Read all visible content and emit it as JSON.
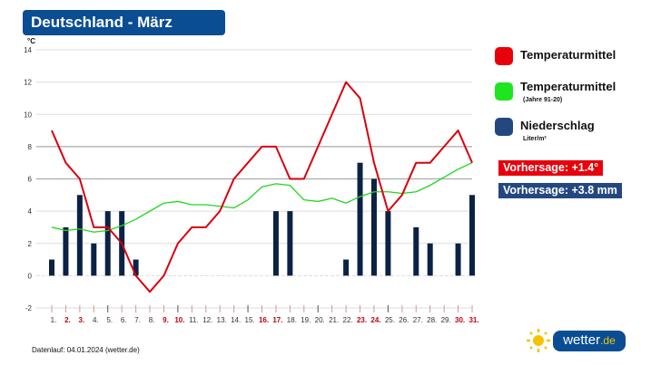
{
  "header": {
    "title": "Deutschland - März",
    "unit": "°C"
  },
  "legend": [
    {
      "label": "Temperaturmittel",
      "sub": "",
      "color": "#e8000b"
    },
    {
      "label": "Temperaturmittel",
      "sub": "(Jahre 91-20)",
      "color": "#1ee61e"
    },
    {
      "label": "Niederschlag",
      "sub": "Liter/m²",
      "color": "#23487f"
    }
  ],
  "forecast": {
    "temp": "Vorhersage: +1.4°",
    "precip": "Vorhersage: +3.8 mm",
    "temp_color": "#e8000b",
    "precip_color": "#23487f"
  },
  "footer": {
    "source": "Datenlauf: 04.01.2024 (wetter.de)",
    "logo_main": "wetter",
    "logo_tld": ".de"
  },
  "chart_data": {
    "type": "bar+line",
    "title": "Deutschland - März",
    "ylabel": "°C",
    "ylim": [
      -2,
      14
    ],
    "yticks": [
      -2,
      0,
      2,
      4,
      6,
      8,
      10,
      12,
      14
    ],
    "categories": [
      "1.",
      "2.",
      "3.",
      "4.",
      "5.",
      "6.",
      "7.",
      "8.",
      "9.",
      "10.",
      "11.",
      "12.",
      "13.",
      "14.",
      "15.",
      "16.",
      "17.",
      "18.",
      "19.",
      "20.",
      "21.",
      "22.",
      "23.",
      "24.",
      "25.",
      "26.",
      "27.",
      "28.",
      "29.",
      "30.",
      "31."
    ],
    "weekend_days": [
      2,
      3,
      9,
      10,
      16,
      17,
      23,
      24,
      30,
      31
    ],
    "series": [
      {
        "name": "Temperaturmittel",
        "type": "line",
        "color": "#d9000d",
        "values": [
          9,
          7,
          6,
          3,
          3,
          2,
          0,
          -1,
          0,
          2,
          3,
          3,
          4,
          6,
          7,
          8,
          8,
          6,
          6,
          8,
          10,
          12,
          11,
          7,
          4,
          5,
          7,
          7,
          8,
          9,
          7
        ]
      },
      {
        "name": "Temperaturmittel (Jahre 91-20)",
        "type": "line",
        "color": "#22d622",
        "values": [
          3,
          2.8,
          2.9,
          2.7,
          2.8,
          3.1,
          3.5,
          4,
          4.5,
          4.6,
          4.4,
          4.4,
          4.3,
          4.2,
          4.7,
          5.5,
          5.7,
          5.6,
          4.7,
          4.6,
          4.8,
          4.5,
          4.9,
          5.2,
          5.2,
          5.1,
          5.2,
          5.6,
          6.1,
          6.6,
          7
        ]
      },
      {
        "name": "Niederschlag (Liter/m²)",
        "type": "bar",
        "color": "#0c2244",
        "values": [
          1,
          3,
          5,
          2,
          4,
          4,
          1,
          0,
          0,
          0,
          0,
          0,
          0,
          0,
          0,
          0,
          4,
          4,
          0,
          0,
          0,
          1,
          7,
          6,
          4,
          0,
          3,
          2,
          0,
          2,
          5
        ]
      }
    ]
  }
}
